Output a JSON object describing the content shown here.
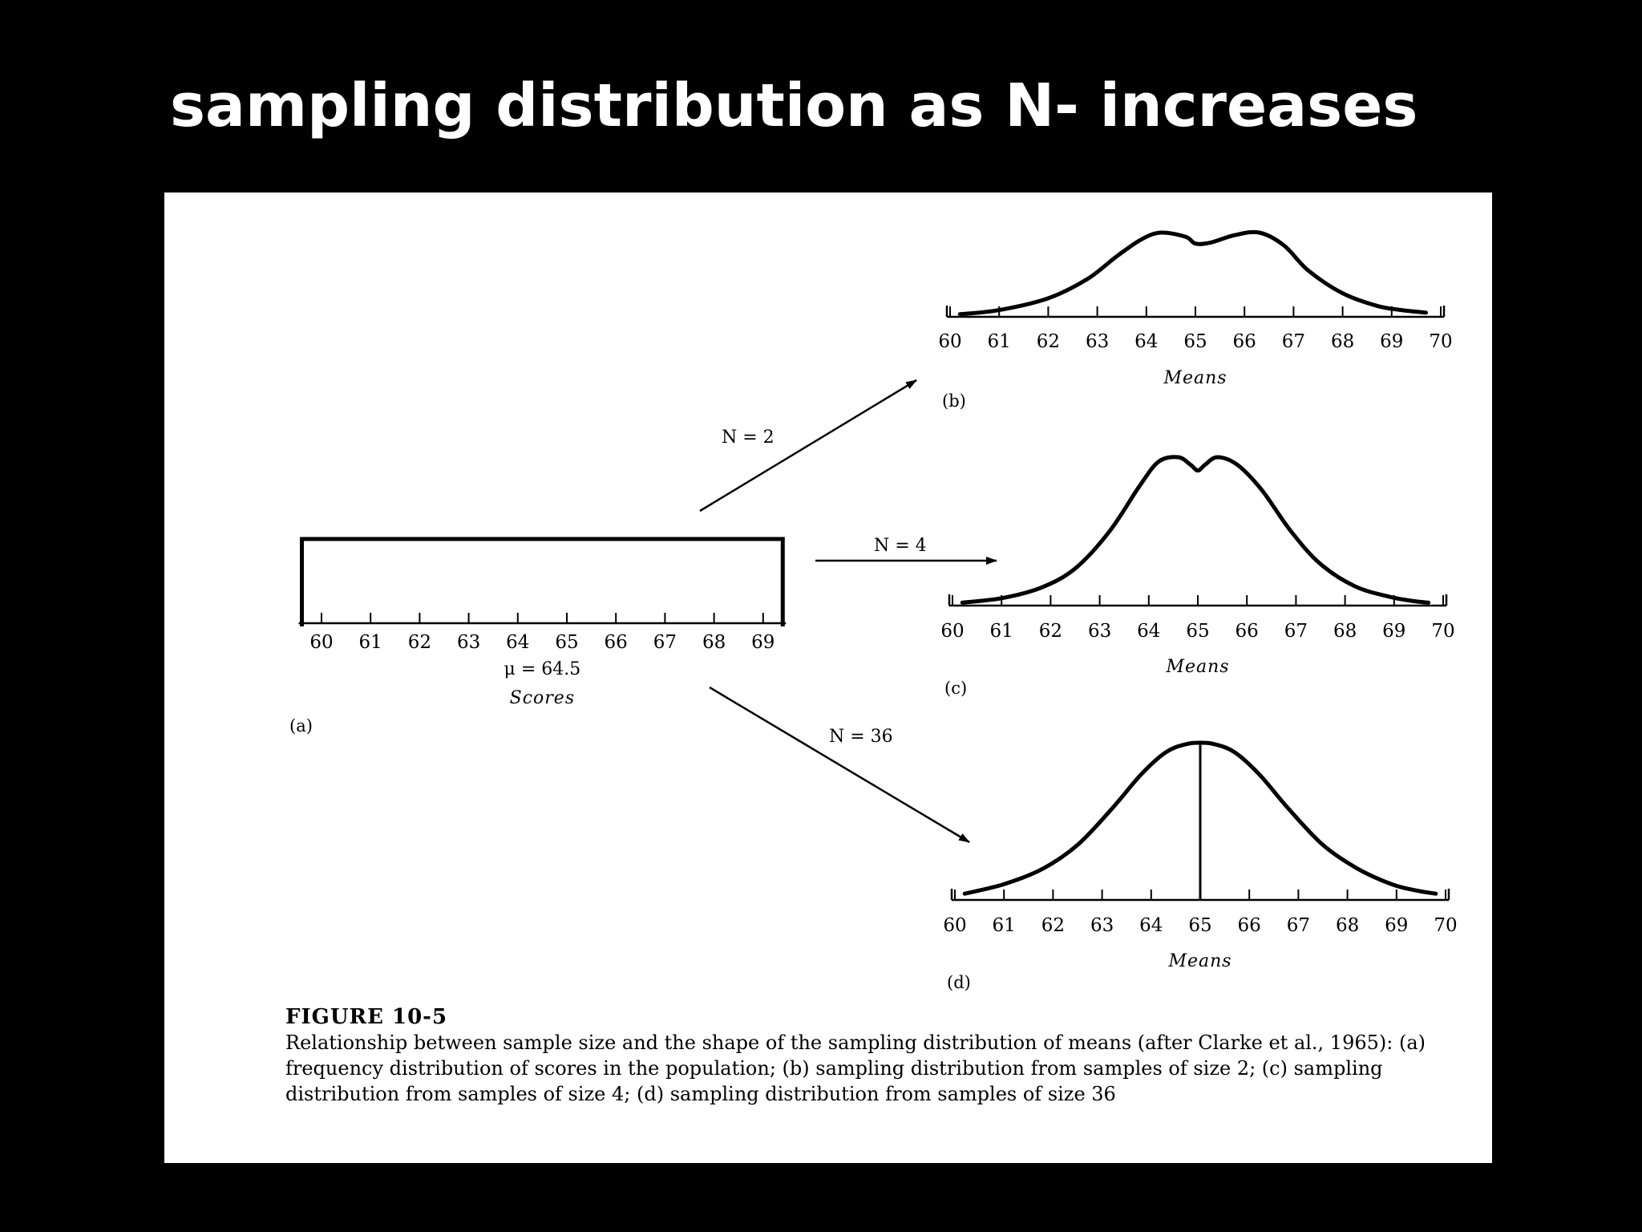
{
  "slide": {
    "title": "sampling distribution as N- increases"
  },
  "caption": {
    "heading": "FIGURE 10-5",
    "body": "Relationship between sample size and the shape of the sampling distribution of means (after Clarke et al., 1965): (a) frequency distribution of scores in the population; (b) sampling distribution from samples of size 2; (c) sampling distribution from samples of size 4; (d) sampling distribution from samples of size 36"
  },
  "arrows": [
    {
      "to": "b",
      "label": "N = 2"
    },
    {
      "to": "c",
      "label": "N = 4"
    },
    {
      "to": "d",
      "label": "N = 36"
    }
  ],
  "chart_data": [
    {
      "id": "a",
      "type": "area",
      "panel_label": "(a)",
      "xlabel": "Scores",
      "mean_label": "μ = 64.5",
      "x_ticks": [
        60,
        61,
        62,
        63,
        64,
        65,
        66,
        67,
        68,
        69
      ],
      "xlim": [
        59.6,
        69.4
      ],
      "x": [
        59.6,
        69.4
      ],
      "y": [
        1,
        1
      ],
      "shape": "uniform"
    },
    {
      "id": "b",
      "type": "line",
      "panel_label": "(b)",
      "xlabel": "Means",
      "sample_size": "N = 2",
      "x_ticks": [
        60,
        61,
        62,
        63,
        64,
        65,
        66,
        67,
        68,
        69,
        70
      ],
      "xlim": [
        60,
        70
      ],
      "x": [
        60.2,
        61.0,
        62.0,
        62.8,
        63.4,
        63.9,
        64.3,
        64.8,
        65.0,
        65.3,
        65.8,
        66.3,
        66.8,
        67.3,
        68.0,
        68.7,
        69.2,
        69.7
      ],
      "y": [
        0.03,
        0.08,
        0.22,
        0.45,
        0.72,
        0.92,
        1.0,
        0.95,
        0.87,
        0.88,
        0.97,
        1.0,
        0.85,
        0.55,
        0.28,
        0.13,
        0.08,
        0.05
      ]
    },
    {
      "id": "c",
      "type": "line",
      "panel_label": "(c)",
      "xlabel": "Means",
      "sample_size": "N = 4",
      "x_ticks": [
        60,
        61,
        62,
        63,
        64,
        65,
        66,
        67,
        68,
        69,
        70
      ],
      "xlim": [
        60,
        70
      ],
      "x": [
        60.2,
        61.0,
        61.8,
        62.5,
        63.2,
        63.8,
        64.2,
        64.6,
        64.85,
        65.0,
        65.15,
        65.4,
        65.8,
        66.3,
        66.9,
        67.5,
        68.2,
        68.9,
        69.4,
        69.7
      ],
      "y": [
        0.02,
        0.05,
        0.12,
        0.25,
        0.5,
        0.8,
        0.97,
        1.0,
        0.95,
        0.91,
        0.95,
        1.0,
        0.95,
        0.78,
        0.5,
        0.28,
        0.13,
        0.06,
        0.03,
        0.02
      ]
    },
    {
      "id": "d",
      "type": "line",
      "panel_label": "(d)",
      "xlabel": "Means",
      "sample_size": "N = 36",
      "x_ticks": [
        60,
        61,
        62,
        63,
        64,
        65,
        66,
        67,
        68,
        69,
        70
      ],
      "xlim": [
        60,
        70
      ],
      "mean_line": 65,
      "x": [
        60.2,
        61.0,
        61.8,
        62.5,
        63.2,
        63.8,
        64.3,
        64.7,
        65.0,
        65.3,
        65.7,
        66.2,
        66.8,
        67.5,
        68.2,
        68.9,
        69.4,
        69.8
      ],
      "y": [
        0.04,
        0.1,
        0.2,
        0.35,
        0.58,
        0.8,
        0.94,
        0.99,
        1.0,
        0.99,
        0.94,
        0.8,
        0.58,
        0.35,
        0.2,
        0.1,
        0.06,
        0.04
      ]
    }
  ]
}
